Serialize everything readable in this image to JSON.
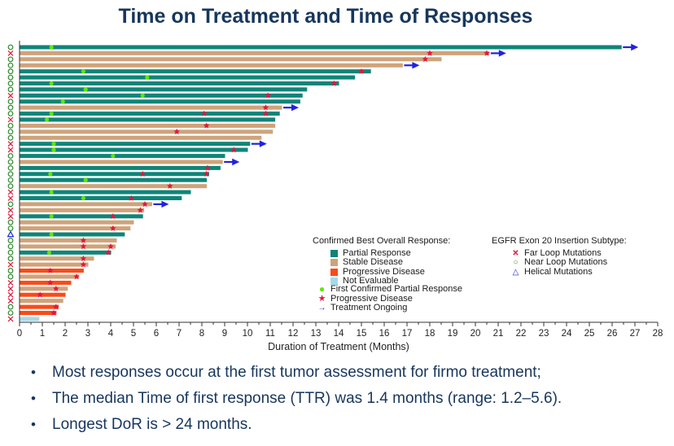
{
  "title": "Time on Treatment and Time of Responses",
  "chart_data": {
    "type": "bar",
    "variant": "swimmer-plot-horizontal",
    "title": "Time on Treatment and Time of Responses",
    "xlabel": "Duration of Treatment (Months)",
    "xlim": [
      0,
      28
    ],
    "x_tick_step": 1,
    "x_minor_tick_step": 0.5,
    "grid": false,
    "colors": {
      "partial_response": "#0E8578",
      "stable_disease": "#CFA37A",
      "progressive_disease": "#FB4A18",
      "not_evaluable": "#A8D8E8",
      "first_confirmed_pr_dot": "#62E600",
      "progressive_disease_star": "#E8143C",
      "ongoing_arrow": "#2222DD",
      "far_loop_marker": "#E8143C",
      "near_loop_marker": "#2E8B2E",
      "helical_marker": "#2424E0",
      "title_text": "#17365D",
      "axis_text": "#222222"
    },
    "rows": [
      {
        "subtype": "near",
        "response": "PR",
        "end": 26.4,
        "dot": 1.4,
        "stars": [],
        "ongoing": true
      },
      {
        "subtype": "far",
        "response": "SD",
        "end": 20.6,
        "dot": null,
        "stars": [
          18.0,
          20.5
        ],
        "ongoing": true
      },
      {
        "subtype": "near",
        "response": "SD",
        "end": 18.5,
        "dot": null,
        "stars": [
          17.8
        ],
        "ongoing": false
      },
      {
        "subtype": "near",
        "response": "SD",
        "end": 16.8,
        "dot": null,
        "stars": [],
        "ongoing": true
      },
      {
        "subtype": "near",
        "response": "PR",
        "end": 15.4,
        "dot": 2.8,
        "stars": [
          15.0
        ],
        "ongoing": false
      },
      {
        "subtype": "near",
        "response": "PR",
        "end": 14.7,
        "dot": 5.6,
        "stars": [],
        "ongoing": false
      },
      {
        "subtype": "near",
        "response": "PR",
        "end": 14.0,
        "dot": 1.4,
        "stars": [
          13.8
        ],
        "ongoing": false
      },
      {
        "subtype": "near",
        "response": "PR",
        "end": 12.6,
        "dot": 2.9,
        "stars": [],
        "ongoing": false
      },
      {
        "subtype": "far",
        "response": "PR",
        "end": 12.4,
        "dot": 5.4,
        "stars": [
          10.9
        ],
        "ongoing": false
      },
      {
        "subtype": "near",
        "response": "PR",
        "end": 12.3,
        "dot": 1.9,
        "stars": [],
        "ongoing": false
      },
      {
        "subtype": "near",
        "response": "SD",
        "end": 11.5,
        "dot": null,
        "stars": [
          10.8
        ],
        "ongoing": true
      },
      {
        "subtype": "near",
        "response": "PR",
        "end": 11.4,
        "dot": 1.4,
        "stars": [
          8.1,
          10.8
        ],
        "ongoing": false
      },
      {
        "subtype": "far",
        "response": "PR",
        "end": 11.2,
        "dot": 1.2,
        "stars": [],
        "ongoing": false
      },
      {
        "subtype": "near",
        "response": "SD",
        "end": 11.2,
        "dot": null,
        "stars": [
          8.2
        ],
        "ongoing": false
      },
      {
        "subtype": "near",
        "response": "SD",
        "end": 11.1,
        "dot": null,
        "stars": [
          6.9
        ],
        "ongoing": false
      },
      {
        "subtype": "near",
        "response": "SD",
        "end": 10.6,
        "dot": null,
        "stars": [],
        "ongoing": false
      },
      {
        "subtype": "far",
        "response": "PR",
        "end": 10.1,
        "dot": 1.5,
        "stars": [],
        "ongoing": true
      },
      {
        "subtype": "far",
        "response": "PR",
        "end": 10.0,
        "dot": 1.5,
        "stars": [
          9.4
        ],
        "ongoing": false
      },
      {
        "subtype": "near",
        "response": "PR",
        "end": 9.0,
        "dot": 4.1,
        "stars": [],
        "ongoing": false
      },
      {
        "subtype": "near",
        "response": "SD",
        "end": 8.9,
        "dot": null,
        "stars": [],
        "ongoing": true
      },
      {
        "subtype": "near",
        "response": "PR",
        "end": 8.8,
        "dot": null,
        "stars": [
          8.25
        ],
        "ongoing": false
      },
      {
        "subtype": "near",
        "response": "PR",
        "end": 8.3,
        "dot": 1.35,
        "stars": [
          5.4,
          8.2
        ],
        "ongoing": false
      },
      {
        "subtype": "near",
        "response": "PR",
        "end": 8.2,
        "dot": 2.9,
        "stars": [],
        "ongoing": false
      },
      {
        "subtype": "near",
        "response": "SD",
        "end": 8.2,
        "dot": null,
        "stars": [
          6.6
        ],
        "ongoing": false
      },
      {
        "subtype": "far",
        "response": "PR",
        "end": 7.5,
        "dot": 1.4,
        "stars": [],
        "ongoing": false
      },
      {
        "subtype": "far",
        "response": "PR",
        "end": 7.1,
        "dot": 2.8,
        "stars": [
          4.9
        ],
        "ongoing": false
      },
      {
        "subtype": "near",
        "response": "SD",
        "end": 5.8,
        "dot": null,
        "stars": [
          5.5
        ],
        "ongoing": true
      },
      {
        "subtype": "far",
        "response": "SD",
        "end": 5.45,
        "dot": null,
        "stars": [
          5.3
        ],
        "ongoing": false
      },
      {
        "subtype": "far",
        "response": "PR",
        "end": 5.4,
        "dot": 1.4,
        "stars": [
          4.1
        ],
        "ongoing": false
      },
      {
        "subtype": "near",
        "response": "SD",
        "end": 5.0,
        "dot": null,
        "stars": [],
        "ongoing": false
      },
      {
        "subtype": "near",
        "response": "SD",
        "end": 4.85,
        "dot": null,
        "stars": [
          4.1
        ],
        "ongoing": false
      },
      {
        "subtype": "helical",
        "response": "PR",
        "end": 4.6,
        "dot": 1.4,
        "stars": [],
        "ongoing": false
      },
      {
        "subtype": "near",
        "response": "SD",
        "end": 4.25,
        "dot": null,
        "stars": [
          2.8
        ],
        "ongoing": false
      },
      {
        "subtype": "near",
        "response": "SD",
        "end": 4.2,
        "dot": null,
        "stars": [
          2.8,
          4.0
        ],
        "ongoing": false
      },
      {
        "subtype": "near",
        "response": "PR",
        "end": 4.0,
        "dot": 1.3,
        "stars": [
          3.9
        ],
        "ongoing": false
      },
      {
        "subtype": "near",
        "response": "SD",
        "end": 3.25,
        "dot": null,
        "stars": [
          2.8
        ],
        "ongoing": false
      },
      {
        "subtype": "far",
        "response": "SD",
        "end": 3.0,
        "dot": null,
        "stars": [
          2.8
        ],
        "ongoing": false
      },
      {
        "subtype": "near",
        "response": "PD",
        "end": 2.8,
        "dot": null,
        "stars": [
          1.35
        ],
        "ongoing": false
      },
      {
        "subtype": "near",
        "response": "SD",
        "end": 2.6,
        "dot": null,
        "stars": [
          2.5
        ],
        "ongoing": false
      },
      {
        "subtype": "far",
        "response": "PD",
        "end": 2.25,
        "dot": null,
        "stars": [
          1.35
        ],
        "ongoing": false
      },
      {
        "subtype": "far",
        "response": "SD",
        "end": 2.1,
        "dot": null,
        "stars": [
          1.6
        ],
        "ongoing": false
      },
      {
        "subtype": "far",
        "response": "PD",
        "end": 2.0,
        "dot": null,
        "stars": [
          0.9
        ],
        "ongoing": false
      },
      {
        "subtype": "far",
        "response": "SD",
        "end": 1.9,
        "dot": null,
        "stars": [],
        "ongoing": false
      },
      {
        "subtype": "near",
        "response": "PD",
        "end": 1.7,
        "dot": null,
        "stars": [
          1.6
        ],
        "ongoing": false
      },
      {
        "subtype": "near",
        "response": "PD",
        "end": 1.6,
        "dot": null,
        "stars": [
          1.5
        ],
        "ongoing": false
      },
      {
        "subtype": "far",
        "response": "NE",
        "end": 0.85,
        "dot": null,
        "stars": [],
        "ongoing": false
      }
    ]
  },
  "legend": {
    "response": {
      "header": "Confirmed Best Overall Response:",
      "items": [
        {
          "label": "Partial Response",
          "color": "#0E8578"
        },
        {
          "label": "Stable Disease",
          "color": "#CFA37A"
        },
        {
          "label": "Progressive Disease",
          "color": "#FB4A18"
        },
        {
          "label": "Not Evaluable",
          "color": "#A8D8E8"
        }
      ]
    },
    "markers": {
      "items": [
        {
          "label": "First Confirmed Partial Response",
          "glyph": "green-dot",
          "color": "#62E600"
        },
        {
          "label": "Progressive Disease",
          "glyph": "red-star",
          "color": "#E8143C"
        },
        {
          "label": "Treatment Ongoing",
          "glyph": "blue-arrow",
          "color": "#2222DD"
        }
      ]
    },
    "subtype": {
      "header": "EGFR Exon 20 Insertion Subtype:",
      "items": [
        {
          "label": "Far Loop Mutations",
          "glyph": "red-x",
          "color": "#E8143C"
        },
        {
          "label": "Near Loop Mutations",
          "glyph": "green-circle",
          "color": "#2E8B2E"
        },
        {
          "label": "Helical Mutations",
          "glyph": "blue-triangle",
          "color": "#2424E0"
        }
      ]
    }
  },
  "bullets": [
    "Most responses occur at the first tumor assessment for firmo treatment;",
    "The median Time of first response (TTR) was 1.4 months (range: 1.2–5.6).",
    "Longest DoR is > 24 months."
  ]
}
